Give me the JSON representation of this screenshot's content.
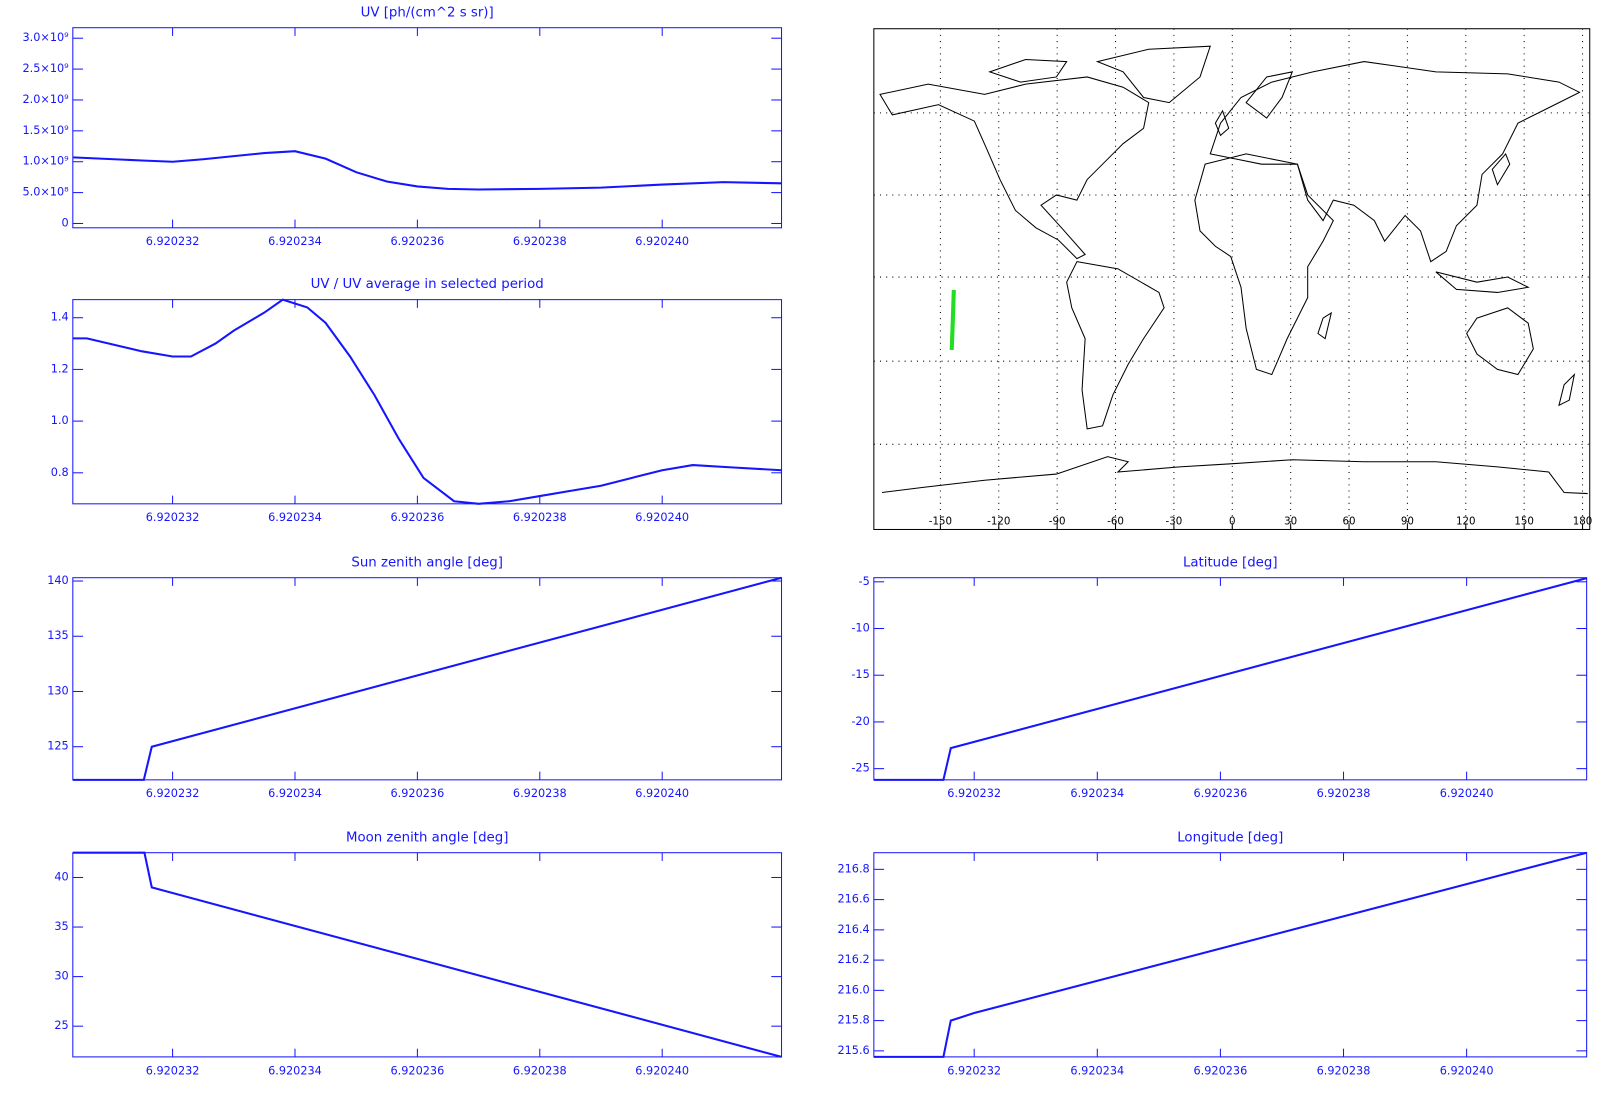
{
  "chart_data": [
    {
      "type": "line",
      "title": "UV [ph/(cm^2 s sr)]",
      "x": [
        6.92023037,
        6.9202315,
        6.920232,
        6.9202325,
        6.920233,
        6.9202335,
        6.920234,
        6.9202345,
        6.920235,
        6.9202355,
        6.920236,
        6.9202365,
        6.920237,
        6.920238,
        6.920239,
        6.92024,
        6.920241,
        6.92024195
      ],
      "series": [
        {
          "name": "UV",
          "color": "#1515ff",
          "values": [
            1070000000,
            1020000000,
            1000000000,
            1040000000,
            1090000000,
            1140000000,
            1170000000,
            1050000000,
            830000000,
            680000000,
            600000000,
            560000000,
            550000000,
            560000000,
            580000000,
            630000000,
            670000000,
            650000000
          ]
        }
      ],
      "xlim": [
        6.92023037,
        6.92024195
      ],
      "xticks": [
        6.920232,
        6.920234,
        6.920236,
        6.920238,
        {
          "value": 6.92024,
          "label": "6.920240"
        }
      ],
      "ylim": [
        -70000000,
        3170000000
      ],
      "yticks": [
        0,
        {
          "value": 500000000,
          "label": "5.0×10⁸"
        },
        {
          "value": 1000000000,
          "label": "1.0×10⁹"
        },
        {
          "value": 1500000000,
          "label": "1.5×10⁹"
        },
        {
          "value": 2000000000,
          "label": "2.0×10⁹"
        },
        {
          "value": 2500000000,
          "label": "2.5×10⁹"
        },
        {
          "value": 3000000000,
          "label": "3.0×10⁹"
        }
      ]
    },
    {
      "type": "line",
      "title": "UV / UV average in selected period",
      "x": [
        6.92023037,
        6.9202306,
        6.9202315,
        6.920232,
        6.9202323,
        6.9202327,
        6.920233,
        6.9202335,
        6.9202338,
        6.9202342,
        6.9202345,
        6.9202349,
        6.9202353,
        6.9202357,
        6.9202361,
        6.9202366,
        6.920237,
        6.9202375,
        6.920238,
        6.9202385,
        6.920239,
        6.9202395,
        6.92024,
        6.9202405,
        6.9202412,
        6.92024195
      ],
      "series": [
        {
          "name": "UV ratio",
          "color": "#1515ff",
          "values": [
            1.32,
            1.32,
            1.27,
            1.25,
            1.25,
            1.3,
            1.35,
            1.42,
            1.47,
            1.44,
            1.38,
            1.25,
            1.1,
            0.93,
            0.78,
            0.69,
            0.68,
            0.69,
            0.71,
            0.73,
            0.75,
            0.78,
            0.81,
            0.83,
            0.82,
            0.81
          ]
        }
      ],
      "xlim": [
        6.92023037,
        6.92024195
      ],
      "xticks": [
        6.920232,
        6.920234,
        6.920236,
        6.920238,
        {
          "value": 6.92024,
          "label": "6.920240"
        }
      ],
      "ylim": [
        0.68,
        1.47
      ],
      "yticks": [
        0.8,
        {
          "value": 1,
          "label": "1.0"
        },
        1.2,
        1.4
      ]
    },
    {
      "type": "map",
      "x": [
        -144.2,
        -144.0,
        -143.6,
        -143.1
      ],
      "series": [
        {
          "name": "Track",
          "color": "#22dd22",
          "values": [
            -26.0,
            -22.8,
            -15.0,
            -4.6
          ]
        }
      ],
      "xlim": [
        -184.2,
        183.7
      ],
      "ylim": [
        -90,
        88.5
      ],
      "xticks": [
        -150,
        -120,
        -90,
        -60,
        -30,
        0,
        30,
        60,
        90,
        120,
        150,
        180
      ],
      "grid": true
    },
    {
      "type": "line",
      "title": "Sun zenith angle [deg]",
      "x": [
        6.92023037,
        6.92023153,
        6.92023166,
        6.92024195
      ],
      "series": [
        {
          "name": "Sun zenith",
          "color": "#1515ff",
          "values": [
            122.0,
            122.0,
            125.0,
            140.3
          ]
        }
      ],
      "xlim": [
        6.92023037,
        6.92024195
      ],
      "xticks": [
        6.920232,
        6.920234,
        6.920236,
        6.920238,
        {
          "value": 6.92024,
          "label": "6.920240"
        }
      ],
      "ylim": [
        122.0,
        140.3
      ],
      "yticks": [
        125,
        130,
        135,
        140
      ]
    },
    {
      "type": "line",
      "title": "Latitude [deg]",
      "x": [
        6.92023037,
        6.9202315,
        6.92023162,
        6.92024195
      ],
      "series": [
        {
          "name": "Latitude",
          "color": "#1515ff",
          "values": [
            -26.2,
            -26.2,
            -22.8,
            -4.6
          ]
        }
      ],
      "xlim": [
        6.92023037,
        6.92024195
      ],
      "xticks": [
        6.920232,
        6.920234,
        6.920236,
        6.920238,
        {
          "value": 6.92024,
          "label": "6.920240"
        }
      ],
      "ylim": [
        -26.2,
        -4.56
      ],
      "yticks": [
        -25,
        -20,
        -15,
        -10,
        -5
      ]
    },
    {
      "type": "line",
      "title": "Moon zenith angle [deg]",
      "x": [
        6.92023037,
        6.92023154,
        6.92023166,
        6.92024195
      ],
      "series": [
        {
          "name": "Moon zenith",
          "color": "#1515ff",
          "values": [
            42.5,
            42.5,
            39.0,
            21.9
          ]
        }
      ],
      "xlim": [
        6.92023037,
        6.92024195
      ],
      "xticks": [
        6.920232,
        6.920234,
        6.920236,
        6.920238,
        {
          "value": 6.92024,
          "label": "6.920240"
        }
      ],
      "ylim": [
        21.9,
        42.5
      ],
      "yticks": [
        25,
        30,
        35,
        40
      ]
    },
    {
      "type": "line",
      "title": "Longitude [deg]",
      "x": [
        6.92023037,
        6.9202315,
        6.92023162,
        6.920232,
        6.92024195
      ],
      "series": [
        {
          "name": "Longitude",
          "color": "#1515ff",
          "values": [
            215.56,
            215.56,
            215.8,
            215.85,
            216.91
          ]
        }
      ],
      "xlim": [
        6.92023037,
        6.92024195
      ],
      "xticks": [
        6.920232,
        6.920234,
        6.920236,
        6.920238,
        {
          "value": 6.92024,
          "label": "6.920240"
        }
      ],
      "ylim": [
        215.56,
        216.91
      ],
      "yticks": [
        {
          "value": 215.6,
          "label": "215.6"
        },
        215.8,
        {
          "value": 216,
          "label": "216.0"
        },
        216.2,
        216.4,
        216.6,
        216.8
      ]
    }
  ]
}
